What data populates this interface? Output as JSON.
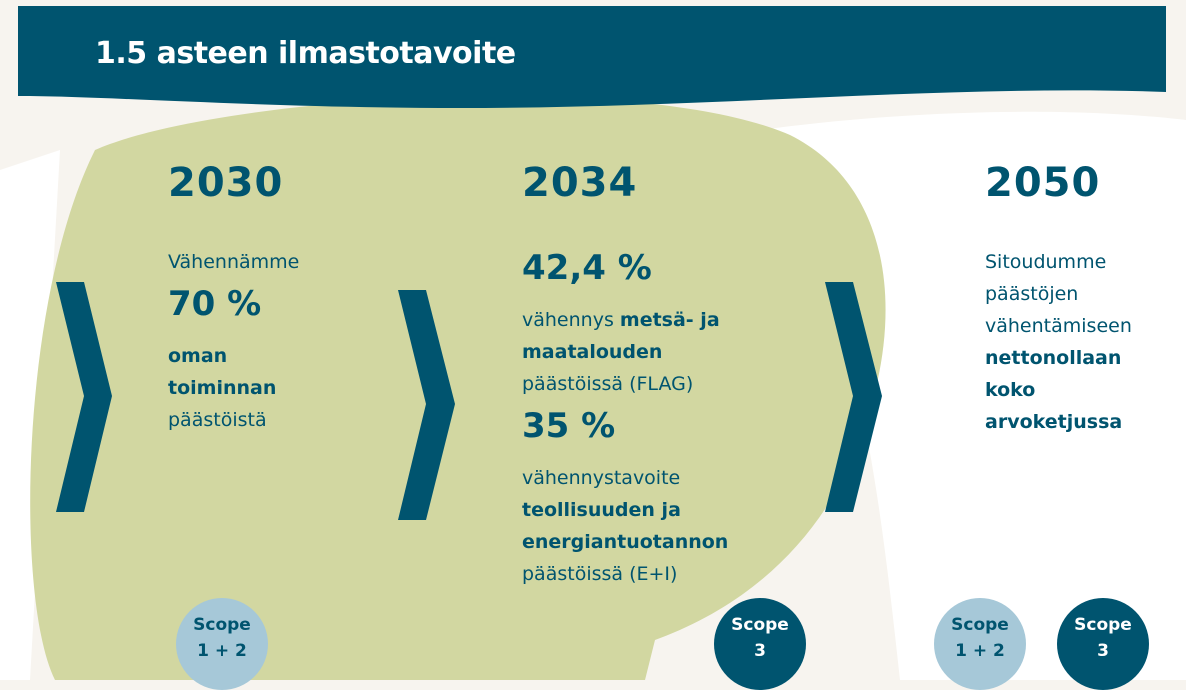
{
  "header": {
    "title": "1.5 asteen ilmastotavoite"
  },
  "columns": [
    {
      "year": "2030",
      "blocks": [
        {
          "style": "light",
          "text": "Vähennämme"
        },
        {
          "style": "big",
          "text": "70 %"
        },
        {
          "style": "bold",
          "text": "oman toiminnan"
        },
        {
          "style": "light",
          "text": "päästöistä"
        }
      ],
      "scopes": [
        {
          "label": "Scope",
          "sub": "1 + 2",
          "variant": "light"
        }
      ]
    },
    {
      "year": "2034",
      "blocks": [
        {
          "style": "big",
          "text": "42,4 %"
        },
        {
          "runs": [
            {
              "text": "vähennys",
              "bold": false
            },
            {
              "text": "metsä- ja maatalouden",
              "bold": true
            },
            {
              "text": "päästöissä (FLAG)",
              "bold": false
            }
          ]
        },
        {
          "style": "big",
          "text": "35 %"
        },
        {
          "runs": [
            {
              "text": "vähennystavoite",
              "bold": false
            },
            {
              "text": "teollisuuden ja energiantuotannon",
              "bold": true
            },
            {
              "text": "päästöissä (E+I)",
              "bold": false
            }
          ]
        }
      ],
      "scopes": [
        {
          "label": "Scope",
          "sub": "3",
          "variant": "dark"
        }
      ]
    },
    {
      "year": "2050",
      "blocks": [
        {
          "style": "light",
          "text": "Sitoudumme päästöjen vähentämiseen"
        },
        {
          "style": "bold",
          "text": "nettonollaan koko arvoketjussa"
        }
      ],
      "scopes": [
        {
          "label": "Scope",
          "sub": "1 + 2",
          "variant": "light"
        },
        {
          "label": "Scope",
          "sub": "3",
          "variant": "dark"
        }
      ]
    }
  ]
}
